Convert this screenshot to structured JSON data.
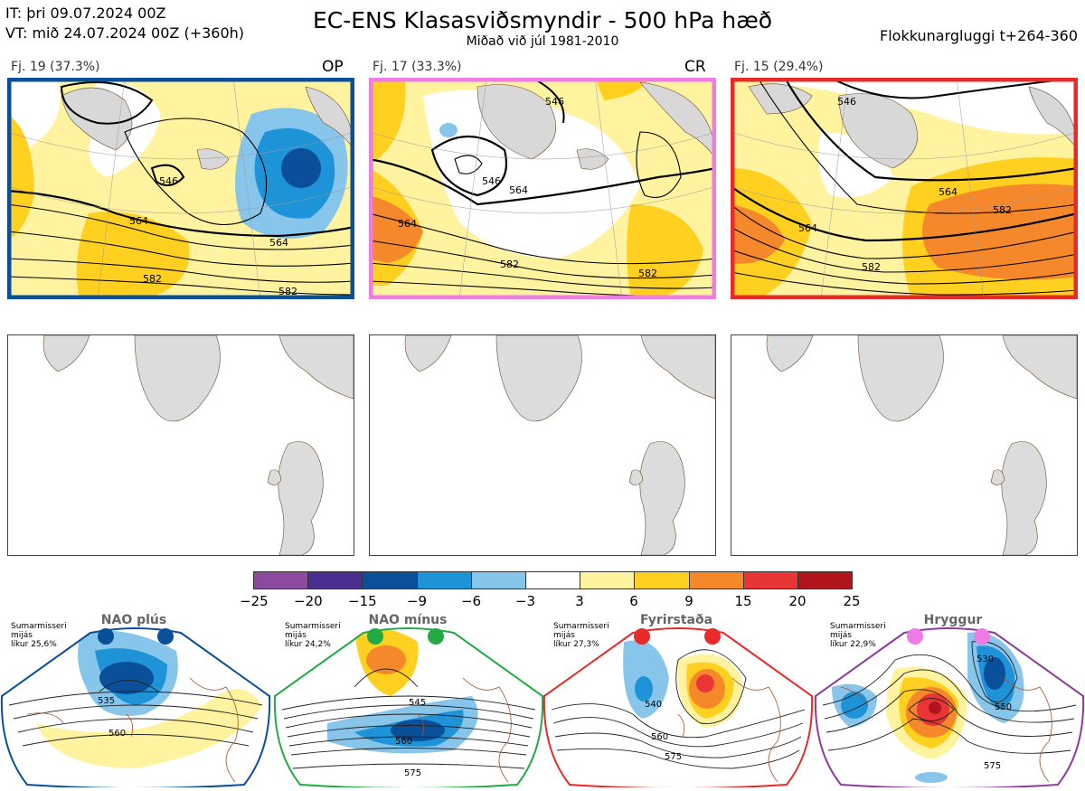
{
  "header": {
    "it_line": "IT: þri 09.07.2024 00Z",
    "vt_line": "VT: mið 24.07.2024 00Z  (+360h)",
    "title": "EC-ENS Klasasviðsmyndir - 500 hPa hæð",
    "subtitle": "Miðað við júl 1981-2010",
    "window": "Flokkunargluggi t+264-360"
  },
  "clusters": [
    {
      "label": "Fj. 19 (37.3%)",
      "tag": "OP",
      "frame_color": "#0a4f9a",
      "contours": [
        "564",
        "564",
        "582",
        "582",
        "546"
      ]
    },
    {
      "label": "Fj. 17 (33.3%)",
      "tag": "CR",
      "frame_color": "#ee7be6",
      "contours": [
        "546",
        "546",
        "564",
        "564",
        "582",
        "582"
      ]
    },
    {
      "label": "Fj. 15 (29.4%)",
      "tag": "",
      "frame_color": "#e82a2a",
      "contours": [
        "546",
        "564",
        "564",
        "582",
        "582"
      ]
    }
  ],
  "colorbar": {
    "ticks": [
      "−25",
      "−20",
      "−15",
      "−9",
      "−6",
      "−3",
      "3",
      "6",
      "9",
      "15",
      "20",
      "25"
    ],
    "colors": [
      "#8b4a9e",
      "#4a2f91",
      "#0a4f9a",
      "#1f93d8",
      "#87c5ea",
      "#ffffff",
      "#fff3a0",
      "#ffd01f",
      "#f6882c",
      "#ea3536",
      "#b0151b"
    ]
  },
  "regimes": [
    {
      "name": "NAO plús",
      "info": [
        "Sumarmisseri",
        "mijás",
        "líkur 25,6%"
      ],
      "color": "#0a4f9a",
      "contours": [
        "535",
        "560"
      ]
    },
    {
      "name": "NAO mínus",
      "info": [
        "Sumarmisseri",
        "mijás",
        "líkur 24,2%"
      ],
      "color": "#22aa44",
      "contours": [
        "545",
        "560",
        "575"
      ]
    },
    {
      "name": "Fyrirstaða",
      "info": [
        "Sumarmisseri",
        "mijás",
        "líkur 27,3%"
      ],
      "color": "#e82a2a",
      "contours": [
        "540",
        "560",
        "575"
      ]
    },
    {
      "name": "Hryggur",
      "info": [
        "Sumarmisseri",
        "mijás",
        "líkur 22,9%"
      ],
      "color": "#ee7be6",
      "contours": [
        "530",
        "550",
        "575"
      ]
    }
  ]
}
